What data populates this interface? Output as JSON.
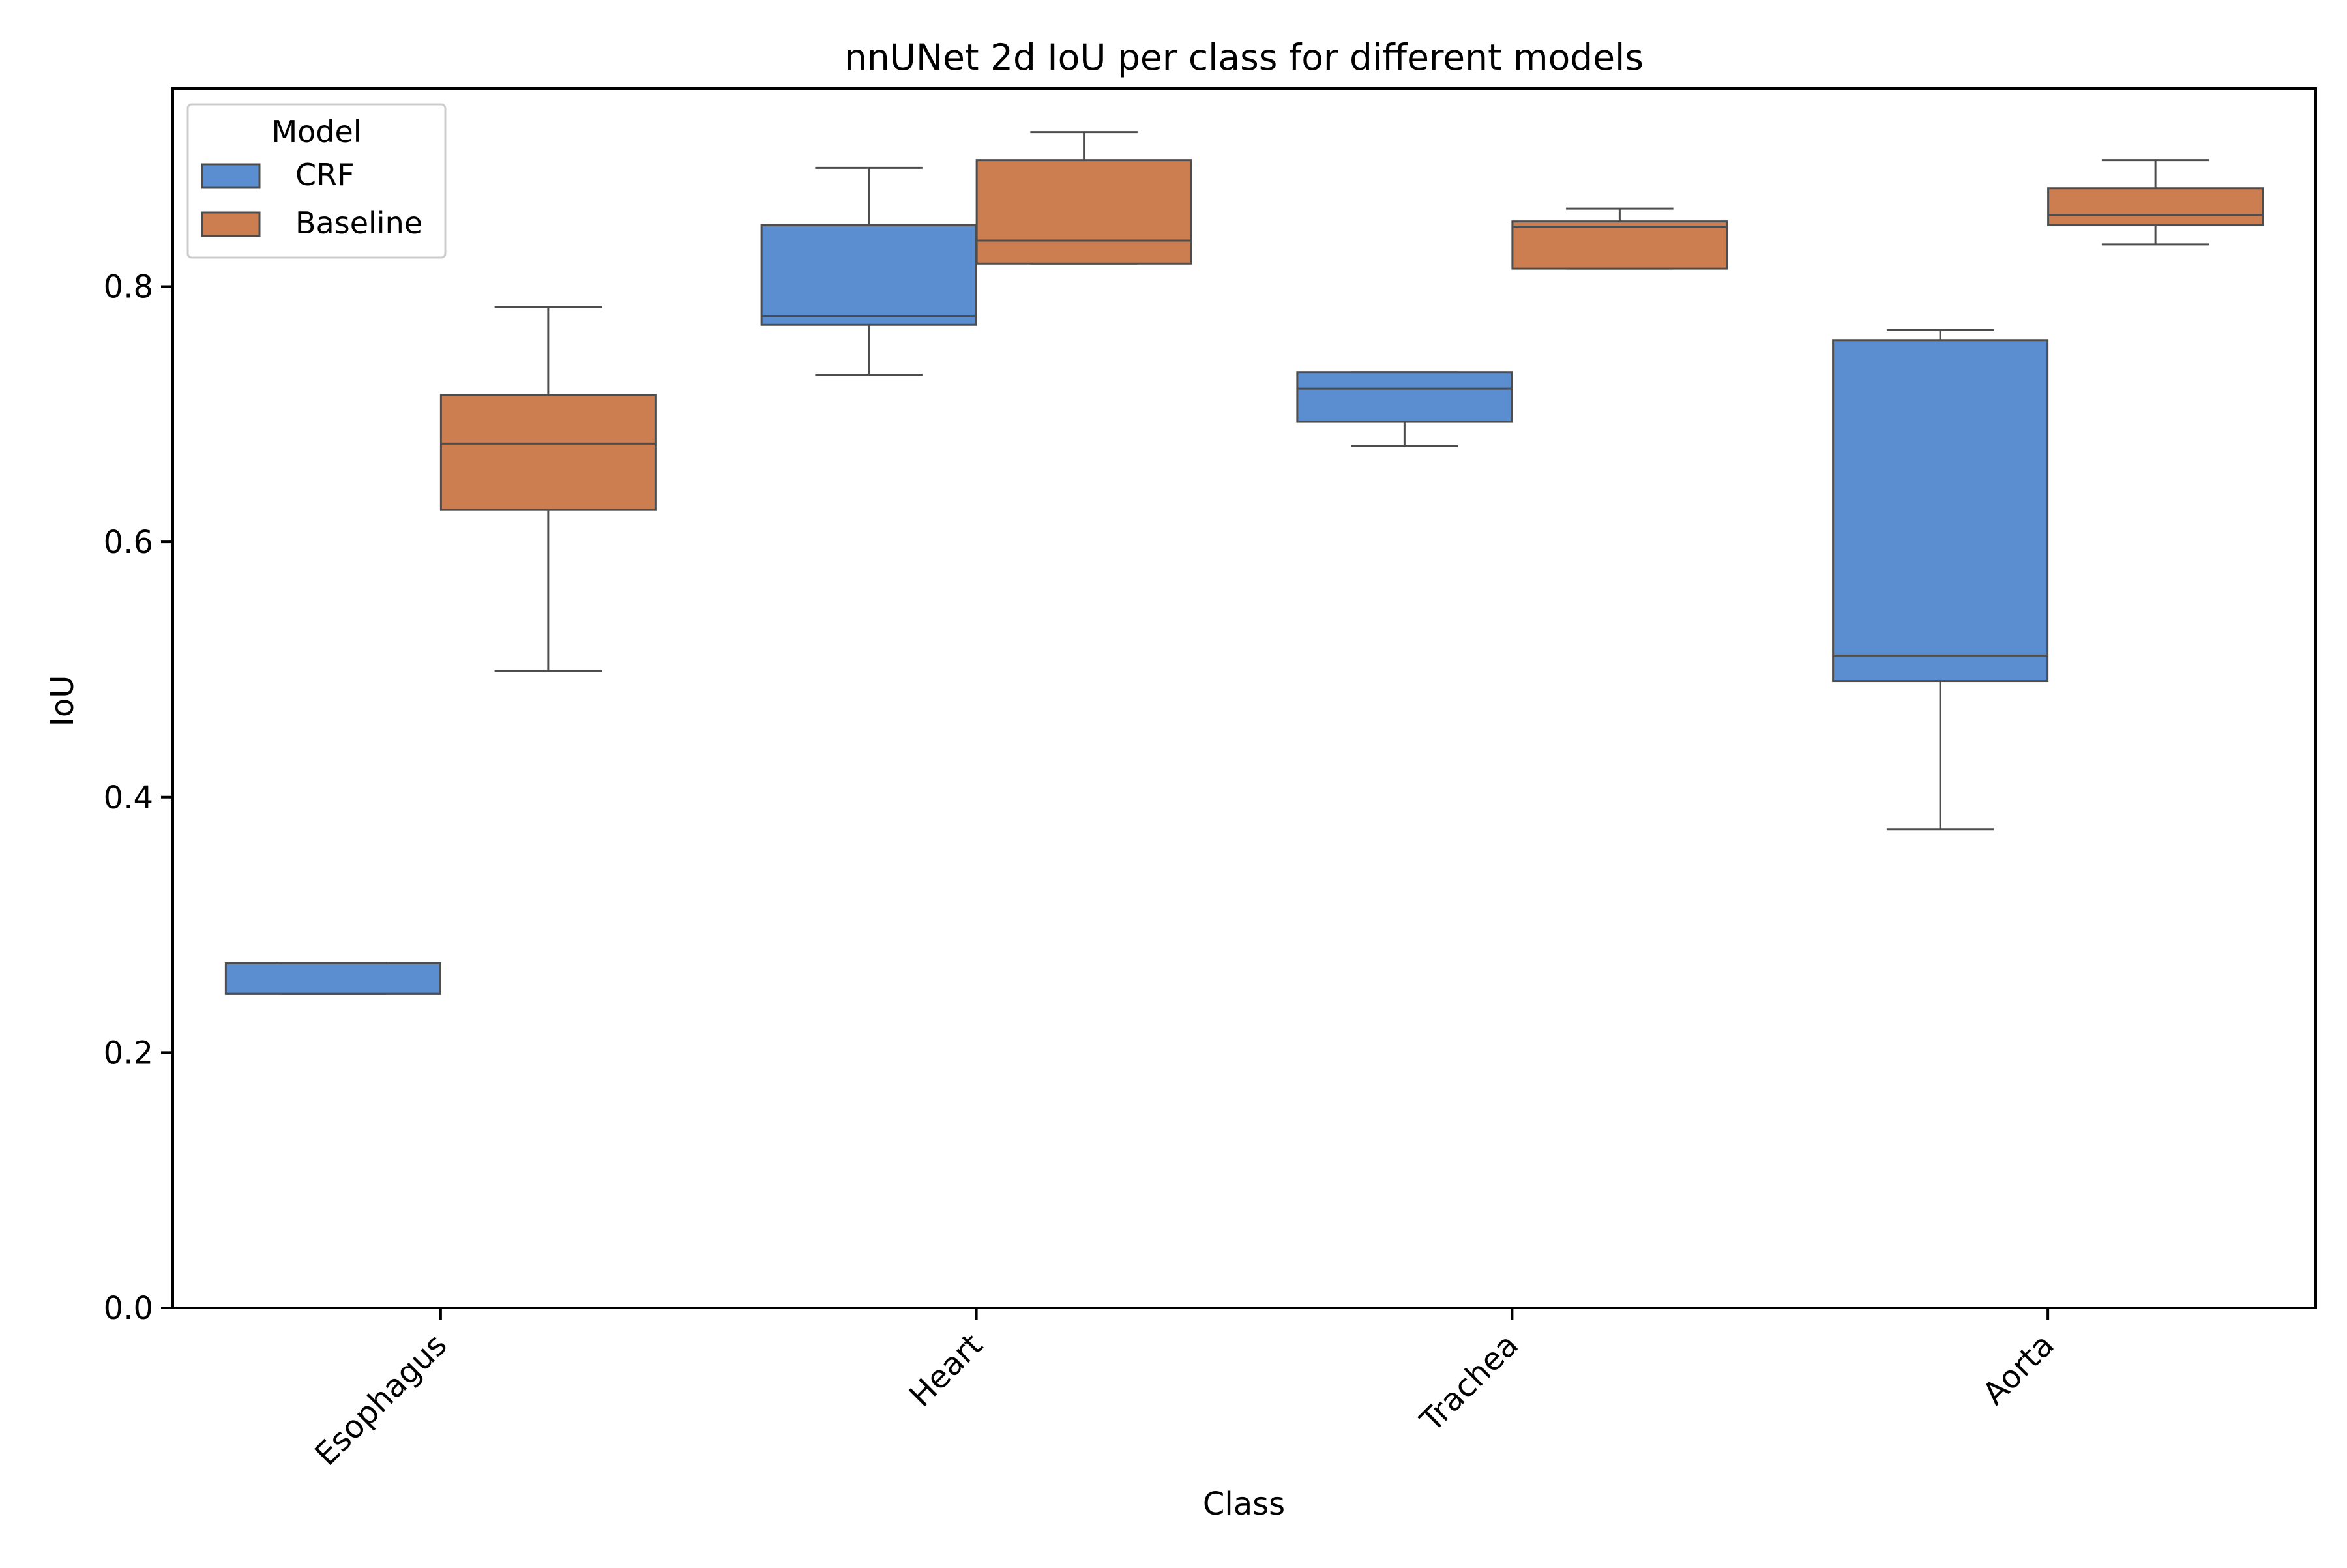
{
  "chart_data": {
    "type": "box",
    "title": "nnUNet 2d IoU per class for different models",
    "xlabel": "Class",
    "ylabel": "IoU",
    "ylim": [
      0,
      0.955
    ],
    "yticks": [
      0.0,
      0.2,
      0.4,
      0.6,
      0.8
    ],
    "ytick_labels": [
      "0.0",
      "0.2",
      "0.4",
      "0.6",
      "0.8"
    ],
    "categories": [
      "Esophagus",
      "Heart",
      "Trachea",
      "Aorta"
    ],
    "legend": {
      "title": "Model",
      "position": "upper left"
    },
    "grid": false,
    "series": [
      {
        "name": "CRF",
        "color": "#5b8ed1",
        "boxes": [
          {
            "category": "Esophagus",
            "whisker_low": 0.246,
            "q1": 0.246,
            "median": 0.246,
            "q3": 0.27,
            "whisker_high": 0.27
          },
          {
            "category": "Heart",
            "whisker_low": 0.731,
            "q1": 0.77,
            "median": 0.777,
            "q3": 0.848,
            "whisker_high": 0.893
          },
          {
            "category": "Trachea",
            "whisker_low": 0.675,
            "q1": 0.694,
            "median": 0.72,
            "q3": 0.733,
            "whisker_high": 0.733
          },
          {
            "category": "Aorta",
            "whisker_low": 0.375,
            "q1": 0.491,
            "median": 0.511,
            "q3": 0.758,
            "whisker_high": 0.766
          }
        ]
      },
      {
        "name": "Baseline",
        "color": "#cd7e51",
        "boxes": [
          {
            "category": "Esophagus",
            "whisker_low": 0.499,
            "q1": 0.625,
            "median": 0.677,
            "q3": 0.715,
            "whisker_high": 0.784
          },
          {
            "category": "Heart",
            "whisker_low": 0.818,
            "q1": 0.818,
            "median": 0.836,
            "q3": 0.899,
            "whisker_high": 0.921
          },
          {
            "category": "Trachea",
            "whisker_low": 0.814,
            "q1": 0.814,
            "median": 0.847,
            "q3": 0.851,
            "whisker_high": 0.861
          },
          {
            "category": "Aorta",
            "whisker_low": 0.833,
            "q1": 0.848,
            "median": 0.856,
            "q3": 0.877,
            "whisker_high": 0.899
          }
        ]
      }
    ]
  }
}
